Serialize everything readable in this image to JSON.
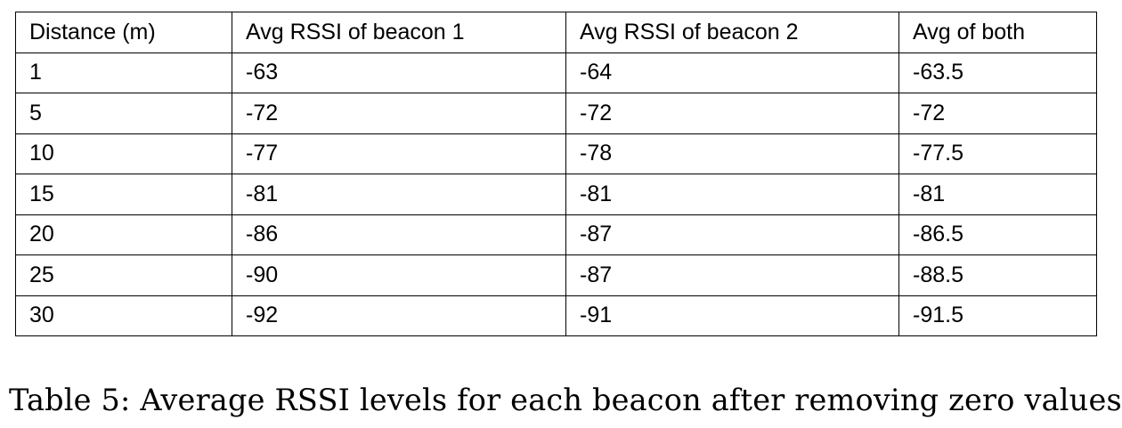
{
  "table": {
    "headers": [
      "Distance (m)",
      "Avg RSSI of beacon 1",
      "Avg RSSI of beacon 2",
      "Avg of both"
    ],
    "rows": [
      [
        "1",
        "-63",
        "-64",
        "-63.5"
      ],
      [
        "5",
        "-72",
        "-72",
        "-72"
      ],
      [
        "10",
        "-77",
        "-78",
        "-77.5"
      ],
      [
        "15",
        "-81",
        "-81",
        "-81"
      ],
      [
        "20",
        "-86",
        "-87",
        "-86.5"
      ],
      [
        "25",
        "-90",
        "-87",
        "-88.5"
      ],
      [
        "30",
        "-92",
        "-91",
        "-91.5"
      ]
    ]
  },
  "caption": "Table 5: Average RSSI levels for each beacon after removing zero values"
}
